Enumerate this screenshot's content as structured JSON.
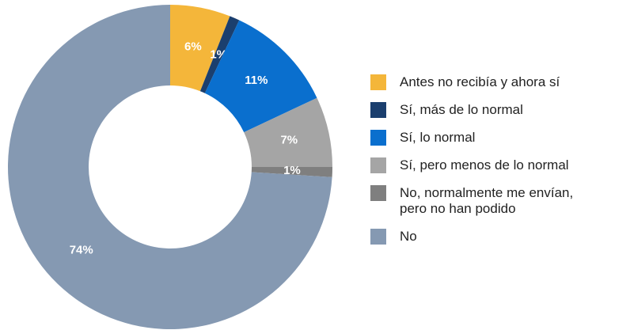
{
  "chart_data": {
    "type": "donut",
    "categories": [
      "Antes no recibía  y ahora sí",
      "Sí, más de lo normal",
      "Sí, lo normal",
      "Sí, pero menos de lo normal",
      "No, normalmente me envían, pero no han podido",
      "No"
    ],
    "values": [
      6,
      1,
      11,
      7,
      1,
      74
    ],
    "value_labels": [
      "6%",
      "1%",
      "11%",
      "7%",
      "1%",
      "74%"
    ],
    "colors": [
      "#f4b63a",
      "#1b3f6e",
      "#0a6fce",
      "#a5a5a5",
      "#7f7f7f",
      "#8599b2"
    ]
  }
}
